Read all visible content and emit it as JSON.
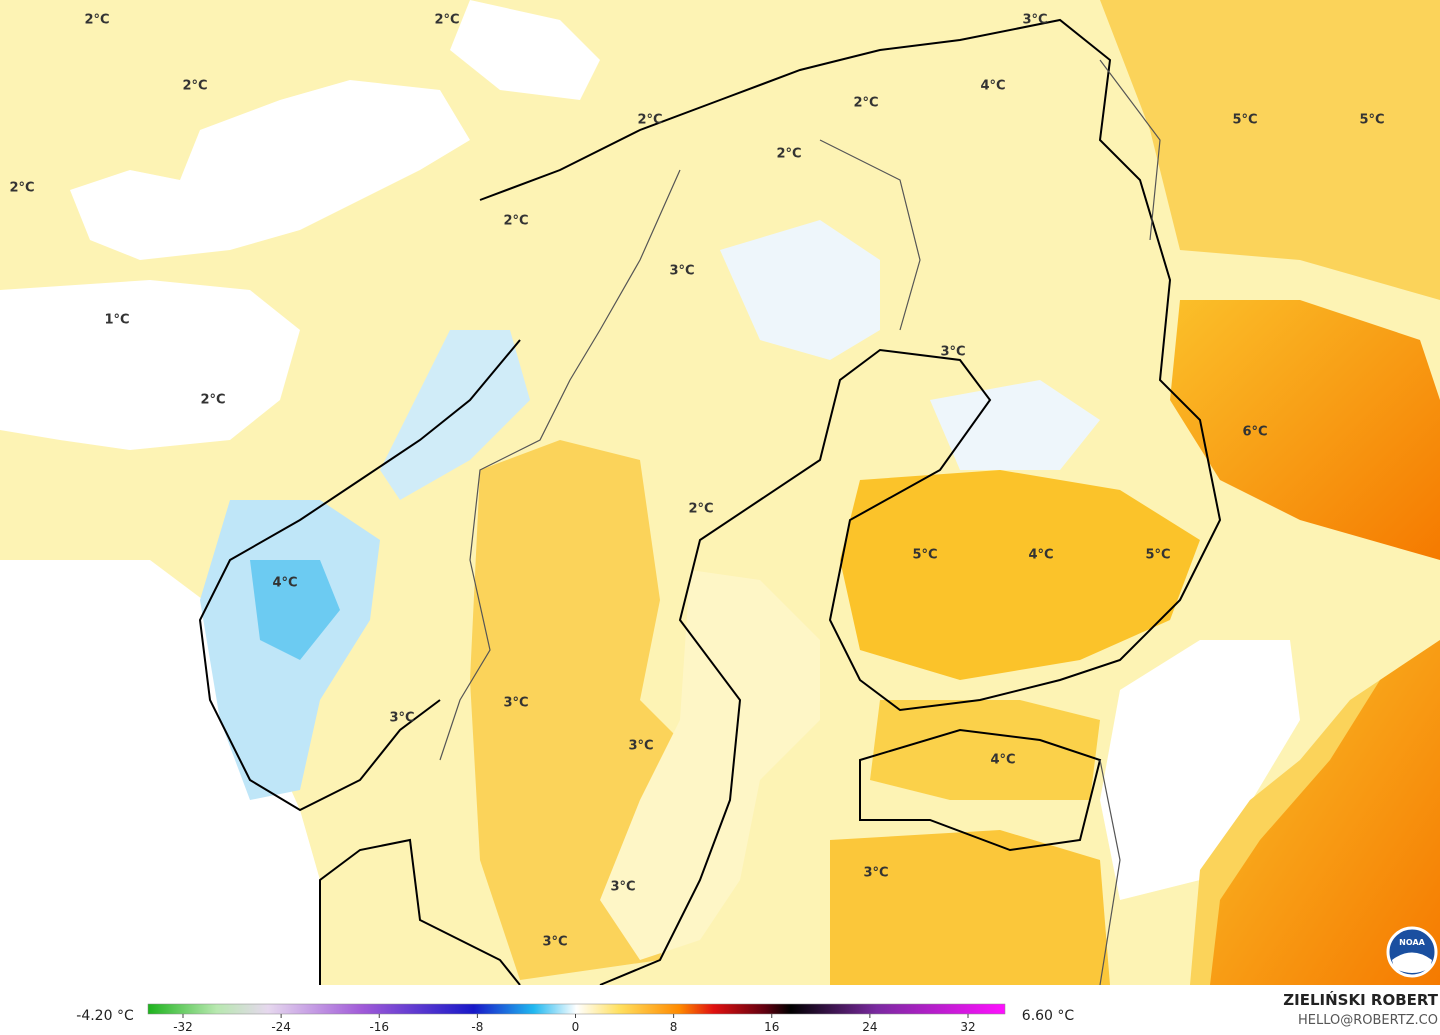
{
  "map": {
    "labels": [
      "2°C",
      "2°C",
      "3°C",
      "2°C",
      "4°C",
      "2°C",
      "2°C",
      "5°C",
      "5°C",
      "2°C",
      "2°C",
      "2°C",
      "3°C",
      "1°C",
      "3°C",
      "2°C",
      "6°C",
      "2°C",
      "5°C",
      "4°C",
      "5°C",
      "4°C",
      "3°C",
      "3°C",
      "3°C",
      "4°C",
      "3°C",
      "3°C",
      "3°C"
    ]
  },
  "colorbar": {
    "min_label": "-4.20 °C",
    "max_label": "6.60 °C",
    "ticks": [
      "-32",
      "-24",
      "-16",
      "-8",
      "0",
      "8",
      "16",
      "24",
      "32"
    ]
  },
  "credit": {
    "author": "ZIELIŃSKI ROBERT",
    "email": "HELLO@ROBERTZ.CO",
    "logo": "NOAA"
  }
}
